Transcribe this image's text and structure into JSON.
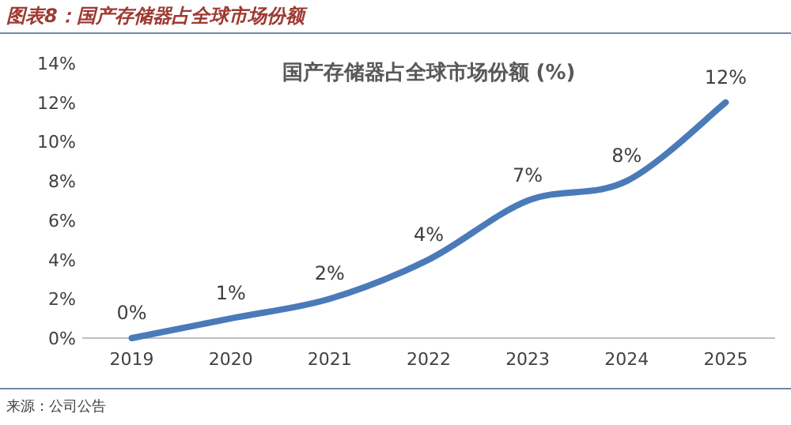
{
  "chart_data": {
    "type": "line",
    "title": "图表8：国产存储器占全球市场份额",
    "subtitle": "国产存储器占全球市场份额 (%)",
    "annotations": [
      "来源：公司公告"
    ],
    "categories": [
      "2019",
      "2020",
      "2021",
      "2022",
      "2023",
      "2024",
      "2025"
    ],
    "series": [
      {
        "color": "#4a7ab8",
        "values": [
          0,
          1,
          2,
          4,
          7,
          8,
          12
        ],
        "value_labels": [
          "0%",
          "1%",
          "2%",
          "4%",
          "7%",
          "8%",
          "12%"
        ]
      }
    ],
    "ylim": [
      0,
      14
    ],
    "yticks": [
      {
        "value": 0,
        "label": "0%"
      },
      {
        "value": 2,
        "label": "2%"
      },
      {
        "value": 4,
        "label": "4%"
      },
      {
        "value": 6,
        "label": "6%"
      },
      {
        "value": 8,
        "label": "8%"
      },
      {
        "value": 10,
        "label": "10%"
      },
      {
        "value": 12,
        "label": "12%"
      },
      {
        "value": 14,
        "label": "14%"
      }
    ],
    "grid": false
  }
}
